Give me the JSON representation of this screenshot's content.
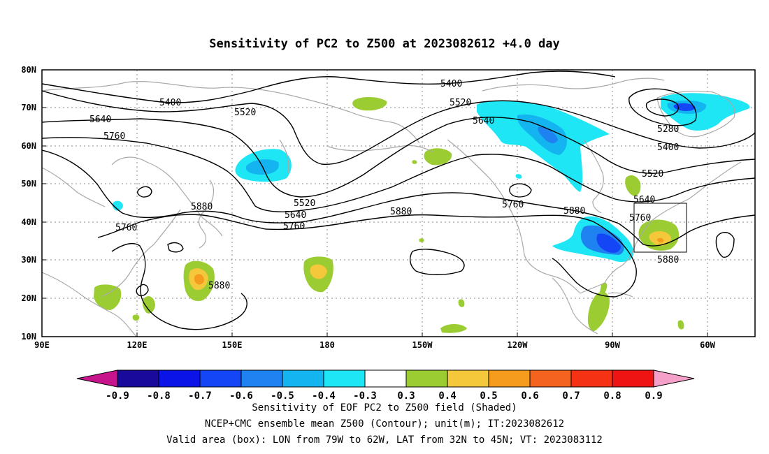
{
  "title": "Sensitivity of PC2 to Z500 at 2023082612 +4.0 day",
  "lat_labels": [
    "80N",
    "70N",
    "60N",
    "50N",
    "40N",
    "30N",
    "20N",
    "10N"
  ],
  "lon_labels": [
    "90E",
    "120E",
    "150E",
    "180",
    "150W",
    "120W",
    "90W",
    "60W"
  ],
  "contour_labels": [
    {
      "text": "5400"
    },
    {
      "text": "5400"
    },
    {
      "text": "5520"
    },
    {
      "text": "5520"
    },
    {
      "text": "5640"
    },
    {
      "text": "5640"
    },
    {
      "text": "5760"
    },
    {
      "text": "5760"
    },
    {
      "text": "5880"
    },
    {
      "text": "5880"
    },
    {
      "text": "5520"
    },
    {
      "text": "5640"
    },
    {
      "text": "5760"
    },
    {
      "text": "5880"
    },
    {
      "text": "5760"
    },
    {
      "text": "5880"
    },
    {
      "text": "5280"
    },
    {
      "text": "5400"
    },
    {
      "text": "5520"
    },
    {
      "text": "5640"
    },
    {
      "text": "5760"
    },
    {
      "text": "5880"
    }
  ],
  "colorbar": {
    "labels": [
      "-0.9",
      "-0.8",
      "-0.7",
      "-0.6",
      "-0.5",
      "-0.4",
      "-0.3",
      "0.3",
      "0.4",
      "0.5",
      "0.6",
      "0.7",
      "0.8",
      "0.9"
    ],
    "colors": [
      "#1a0a9c",
      "#0a14e6",
      "#1446f5",
      "#1e82f0",
      "#14b4f0",
      "#1ee6f5",
      "#ffffff",
      "#9bcd32",
      "#f5c83c",
      "#f59b1e",
      "#f5641e",
      "#f53214",
      "#ee1414"
    ],
    "left_arrow_color": "#c8148c",
    "right_arrow_color": "#f5a0c8"
  },
  "caption": {
    "line1": "Sensitivity of EOF PC2 to Z500 field (Shaded)",
    "line2": "NCEP+CMC ensemble mean Z500 (Contour); unit(m); IT:2023082612",
    "line3": "Valid area (box): LON from 79W to 62W, LAT from 32N to 45N; VT: 2023083112"
  }
}
